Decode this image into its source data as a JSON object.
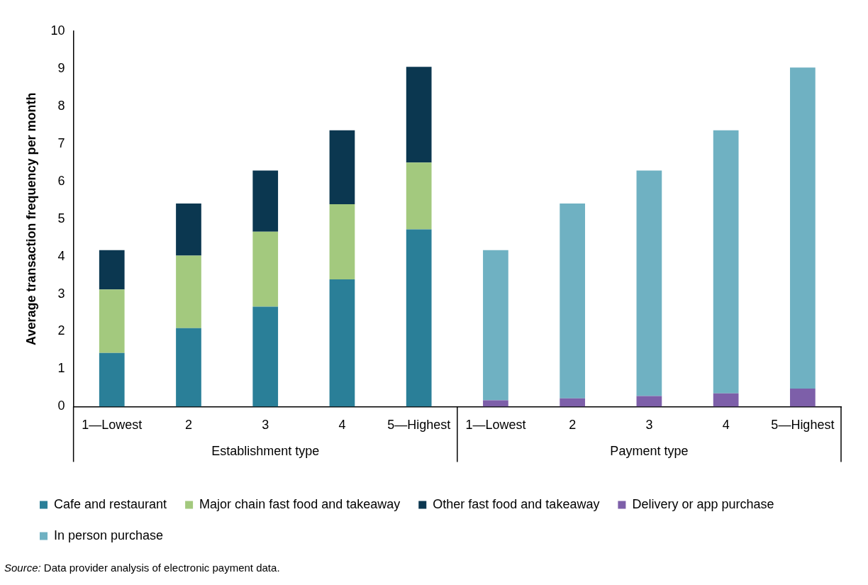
{
  "chart_data": {
    "type": "bar",
    "stacked": true,
    "ylabel": "Average transaction frequency per month",
    "categories": [
      "1—Lowest",
      "2",
      "3",
      "4",
      "5—Highest",
      "1—Lowest",
      "2",
      "3",
      "4",
      "5—Highest"
    ],
    "ylim": [
      0,
      10
    ],
    "yticks": [
      0,
      1,
      2,
      3,
      4,
      5,
      6,
      7,
      8,
      9,
      10
    ],
    "grid": false,
    "legend": "bottom",
    "series": [
      {
        "name": "Cafe and restaurant",
        "color": "#2a7f98",
        "values": [
          1.43,
          2.09,
          2.66,
          3.39,
          4.72,
          null,
          null,
          null,
          null,
          null
        ]
      },
      {
        "name": "Major chain fast food and takeaway",
        "color": "#a3c97e",
        "values": [
          1.69,
          1.93,
          2.0,
          2.0,
          1.78,
          null,
          null,
          null,
          null,
          null
        ]
      },
      {
        "name": "Other fast food and takeaway",
        "color": "#0b3750",
        "values": [
          1.05,
          1.39,
          1.63,
          1.97,
          2.55,
          null,
          null,
          null,
          null,
          null
        ]
      },
      {
        "name": "Delivery or app purchase",
        "color": "#7d5fa9",
        "values": [
          null,
          null,
          null,
          null,
          null,
          0.17,
          0.22,
          0.28,
          0.35,
          0.48
        ]
      },
      {
        "name": "In person purchase",
        "color": "#6fb1c2",
        "values": [
          null,
          null,
          null,
          null,
          null,
          4.0,
          5.19,
          6.01,
          7.01,
          8.55
        ]
      }
    ],
    "annotations": [
      "Establishment type",
      "Payment type",
      "Source: Data provider analysis of electronic payment data."
    ]
  }
}
